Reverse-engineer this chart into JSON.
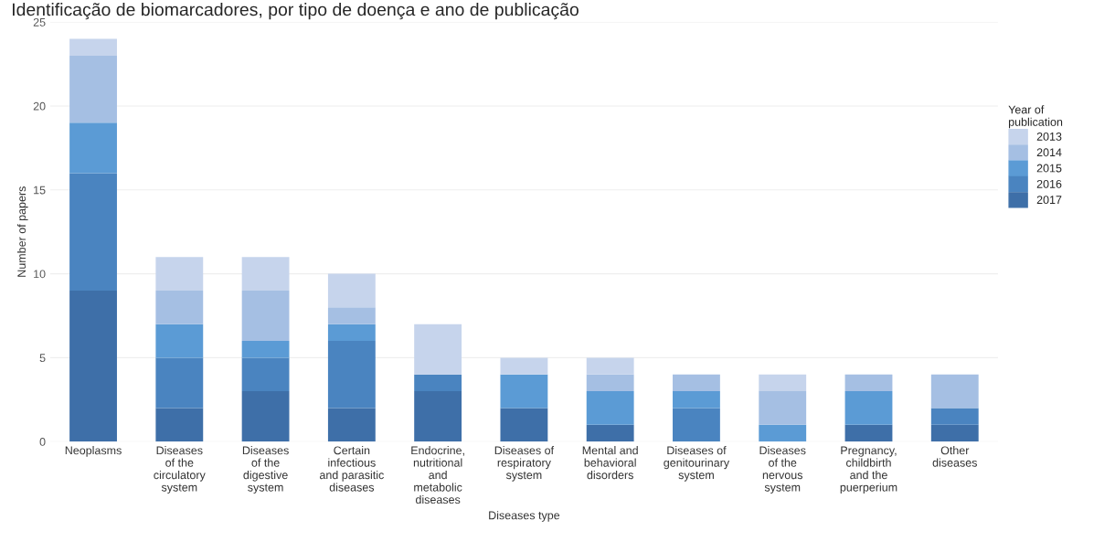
{
  "chart_data": {
    "type": "bar",
    "title": "Identificação de biomarcadores, por tipo de doença e ano de publicação",
    "xlabel": "Diseases type",
    "ylabel": "Number of papers",
    "legend_title": "Year of\npublication",
    "categories": [
      "Neoplasms",
      "Diseases\nof the\ncirculatory\nsystem",
      "Diseases\nof the\ndigestive\nsystem",
      "Certain\ninfectious\nand parasitic\ndiseases",
      "Endocrine,\nnutritional\nand\nmetabolic\ndiseases",
      "Diseases of\nrespiratory\nsystem",
      "Mental and\nbehavioral\ndisorders",
      "Diseases of\ngenitourinary\nsystem",
      "Diseases\nof the\nnervous\nsystem",
      "Pregnancy,\nchildbirth\nand the\npuerperium",
      "Other\ndiseases"
    ],
    "stacked": true,
    "series": [
      {
        "name": "2017",
        "color": "#3e6fa8",
        "values": [
          9,
          2,
          3,
          2,
          3,
          2,
          1,
          0,
          0,
          1,
          1
        ]
      },
      {
        "name": "2016",
        "color": "#4a84c0",
        "values": [
          7,
          3,
          2,
          4,
          1,
          0,
          0,
          2,
          0,
          0,
          1
        ]
      },
      {
        "name": "2015",
        "color": "#5b9bd5",
        "values": [
          3,
          2,
          1,
          1,
          0,
          2,
          2,
          1,
          1,
          2,
          0
        ]
      },
      {
        "name": "2014",
        "color": "#a5bfe3",
        "values": [
          4,
          2,
          3,
          1,
          0,
          0,
          1,
          1,
          2,
          1,
          2
        ]
      },
      {
        "name": "2013",
        "color": "#c6d4ec",
        "values": [
          1,
          2,
          2,
          2,
          3,
          1,
          1,
          0,
          1,
          0,
          0
        ]
      }
    ],
    "ylim": [
      0,
      25
    ],
    "yticks": [
      0,
      5,
      10,
      15,
      20,
      25
    ],
    "grid": "y",
    "legend": "right"
  }
}
